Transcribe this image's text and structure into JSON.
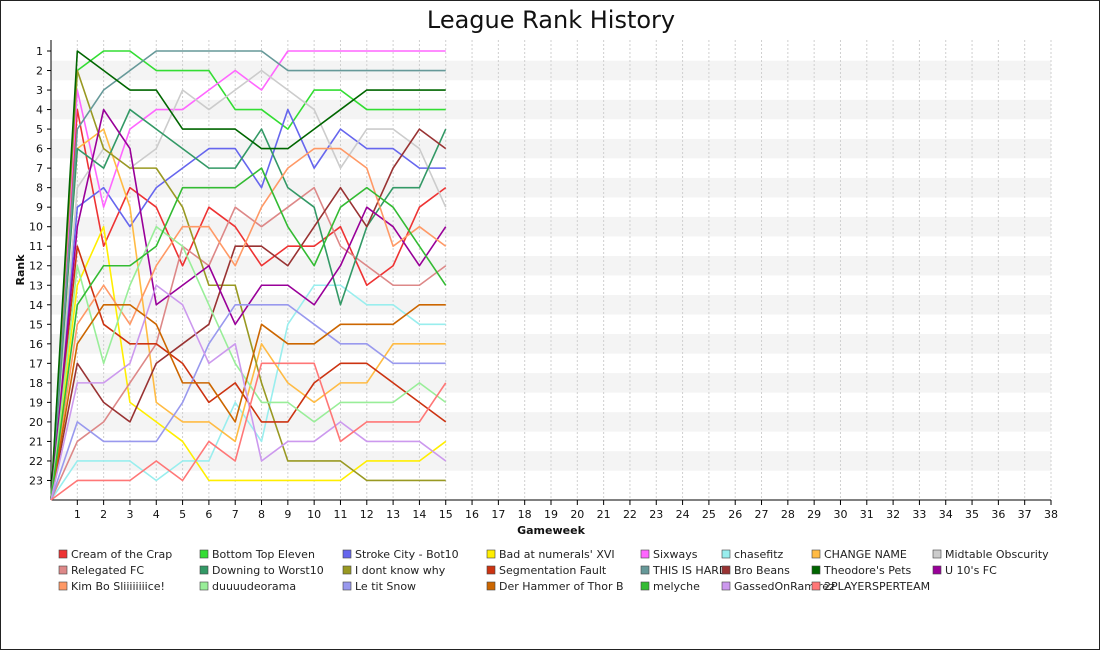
{
  "chart_data": {
    "type": "line",
    "title": "League Rank History",
    "xlabel": "Gameweek",
    "ylabel": "Rank",
    "xlim": [
      0,
      38
    ],
    "ylim": [
      1,
      24
    ],
    "y_inverted": true,
    "x_ticks": [
      1,
      2,
      3,
      4,
      5,
      6,
      7,
      8,
      9,
      10,
      11,
      12,
      13,
      14,
      15,
      16,
      17,
      18,
      19,
      20,
      21,
      22,
      23,
      24,
      25,
      26,
      27,
      28,
      29,
      30,
      31,
      32,
      33,
      34,
      35,
      36,
      37,
      38
    ],
    "y_ticks": [
      1,
      2,
      3,
      4,
      5,
      6,
      7,
      8,
      9,
      10,
      11,
      12,
      13,
      14,
      15,
      16,
      17,
      18,
      19,
      20,
      21,
      22,
      23
    ],
    "grid": true,
    "legend_position": "bottom",
    "series": [
      {
        "name": "Cream of the Crap",
        "color": "#ee3333",
        "values": [
          24,
          4,
          11,
          8,
          9,
          12,
          9,
          10,
          12,
          11,
          11,
          10,
          13,
          12,
          9,
          8
        ]
      },
      {
        "name": "Bottom Top Eleven",
        "color": "#33dd33",
        "values": [
          24,
          2,
          1,
          1,
          2,
          2,
          2,
          4,
          4,
          5,
          3,
          3,
          4,
          4,
          4,
          4
        ]
      },
      {
        "name": "Stroke City - Bot10",
        "color": "#6666ee",
        "values": [
          24,
          9,
          8,
          10,
          8,
          7,
          6,
          6,
          8,
          4,
          7,
          5,
          6,
          6,
          7,
          7
        ]
      },
      {
        "name": "Bad at numerals' XVI",
        "color": "#ffee00",
        "values": [
          24,
          13,
          10,
          19,
          20,
          21,
          23,
          23,
          23,
          23,
          23,
          23,
          22,
          22,
          22,
          21
        ]
      },
      {
        "name": "Sixways",
        "color": "#ff66ff",
        "values": [
          24,
          3,
          9,
          5,
          4,
          4,
          3,
          2,
          3,
          1,
          1,
          1,
          1,
          1,
          1,
          1
        ]
      },
      {
        "name": "chasefitz",
        "color": "#99eeee",
        "values": [
          24,
          22,
          22,
          22,
          23,
          22,
          22,
          19,
          21,
          15,
          13,
          13,
          14,
          14,
          15,
          15
        ]
      },
      {
        "name": "CHANGE NAME",
        "color": "#ffbb44",
        "values": [
          24,
          6,
          5,
          9,
          19,
          20,
          20,
          21,
          16,
          18,
          19,
          18,
          18,
          16,
          16,
          16
        ]
      },
      {
        "name": "Midtable Obscurity",
        "color": "#cccccc",
        "values": [
          24,
          8,
          6,
          7,
          6,
          3,
          4,
          3,
          2,
          3,
          4,
          7,
          5,
          5,
          6,
          9
        ]
      },
      {
        "name": "Relegated FC",
        "color": "#dd8888",
        "values": [
          24,
          21,
          20,
          18,
          16,
          11,
          12,
          9,
          10,
          9,
          8,
          11,
          12,
          13,
          13,
          12
        ]
      },
      {
        "name": "Downing to Worst10",
        "color": "#339966",
        "values": [
          24,
          6,
          7,
          4,
          5,
          6,
          7,
          7,
          5,
          8,
          9,
          14,
          10,
          8,
          8,
          5
        ]
      },
      {
        "name": "I dont know why",
        "color": "#999922",
        "values": [
          24,
          2,
          6,
          7,
          7,
          9,
          13,
          13,
          18,
          22,
          22,
          22,
          23,
          23,
          23,
          23
        ]
      },
      {
        "name": "Segmentation Fault",
        "color": "#cc3311",
        "values": [
          24,
          11,
          15,
          16,
          16,
          17,
          19,
          18,
          20,
          20,
          18,
          17,
          17,
          18,
          19,
          20
        ]
      },
      {
        "name": "THIS IS HARD",
        "color": "#669999",
        "values": [
          24,
          5,
          3,
          2,
          1,
          1,
          1,
          1,
          1,
          2,
          2,
          2,
          2,
          2,
          2,
          2
        ]
      },
      {
        "name": "Bro Beans",
        "color": "#993333",
        "values": [
          24,
          17,
          19,
          20,
          17,
          16,
          15,
          11,
          11,
          12,
          10,
          8,
          10,
          7,
          5,
          6
        ]
      },
      {
        "name": "Theodore's Pets",
        "color": "#006600",
        "values": [
          24,
          1,
          2,
          3,
          3,
          5,
          5,
          5,
          6,
          6,
          5,
          4,
          3,
          3,
          3,
          3
        ]
      },
      {
        "name": "U 10's FC",
        "color": "#990099",
        "values": [
          24,
          10,
          4,
          6,
          14,
          13,
          12,
          15,
          13,
          13,
          14,
          12,
          9,
          10,
          12,
          10
        ]
      },
      {
        "name": "Kim Bo Sliiiiiiiice!",
        "color": "#ff9966",
        "values": [
          24,
          15,
          13,
          15,
          12,
          10,
          10,
          12,
          9,
          7,
          6,
          6,
          7,
          11,
          10,
          11
        ]
      },
      {
        "name": "duuuudeorama",
        "color": "#99ee99",
        "values": [
          24,
          12,
          17,
          13,
          10,
          11,
          14,
          17,
          19,
          19,
          20,
          19,
          19,
          19,
          18,
          19
        ]
      },
      {
        "name": "Le tit Snow",
        "color": "#9999ee",
        "values": [
          24,
          20,
          21,
          21,
          21,
          19,
          16,
          14,
          14,
          14,
          15,
          16,
          16,
          17,
          17,
          17
        ]
      },
      {
        "name": "Der Hammer of Thor B",
        "color": "#cc6600",
        "values": [
          24,
          16,
          14,
          14,
          15,
          18,
          18,
          20,
          15,
          16,
          16,
          15,
          15,
          15,
          14,
          14
        ]
      },
      {
        "name": "melyche",
        "color": "#33bb33",
        "values": [
          24,
          14,
          12,
          12,
          11,
          8,
          8,
          8,
          7,
          10,
          12,
          9,
          8,
          9,
          11,
          13
        ]
      },
      {
        "name": "GassedOnRamirez",
        "color": "#cc99ee",
        "values": [
          24,
          18,
          18,
          17,
          13,
          14,
          17,
          16,
          22,
          21,
          21,
          20,
          21,
          21,
          21,
          22
        ]
      },
      {
        "name": "2PLAYERSPERTEAM",
        "color": "#ff7777",
        "values": [
          24,
          23,
          23,
          23,
          22,
          23,
          21,
          22,
          17,
          17,
          17,
          21,
          20,
          20,
          20,
          18
        ]
      }
    ]
  }
}
